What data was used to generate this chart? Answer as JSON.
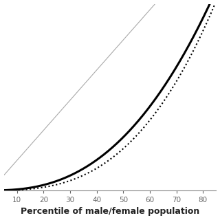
{
  "title": "",
  "xlabel": "Percentile of male/female population",
  "ylabel": "",
  "xlim": [
    5,
    85
  ],
  "ylim": [
    0,
    0.62
  ],
  "xticks": [
    10,
    20,
    30,
    40,
    50,
    60,
    70,
    80
  ],
  "line_of_equality_color": "#aaaaaa",
  "lorenz_male_color": "#000000",
  "lorenz_female_color": "#000000",
  "lorenz_male_linewidth": 2.2,
  "lorenz_female_linewidth": 1.5,
  "background_color": "#ffffff",
  "xlabel_fontsize": 9,
  "xlabel_fontweight": "bold",
  "male_power": 2.5,
  "female_power": 2.85
}
